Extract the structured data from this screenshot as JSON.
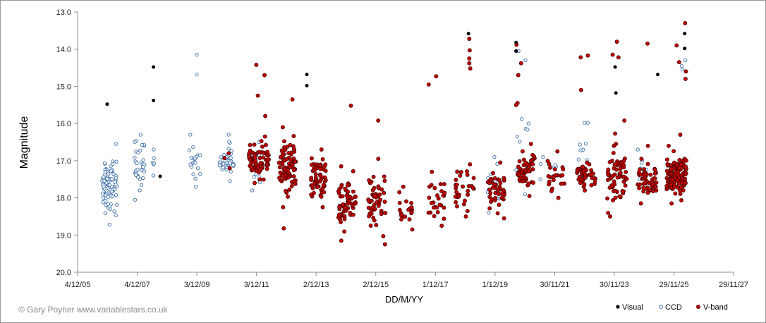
{
  "chart_data": {
    "type": "scatter",
    "title": "",
    "xlabel": "DD/M/YY",
    "ylabel": "Magnitude",
    "x_tick_labels": [
      "4/12/05",
      "4/12/07",
      "3/12/09",
      "3/12/11",
      "2/12/13",
      "2/12/15",
      "1/12/17",
      "1/12/19",
      "30/11/21",
      "30/11/23",
      "29/11/25",
      "29/11/27"
    ],
    "y_tick_labels": [
      "13.0",
      "14.0",
      "15.0",
      "16.0",
      "17.0",
      "18.0",
      "19.0",
      "20.0"
    ],
    "xlim": [
      "4/12/05",
      "29/11/27"
    ],
    "ylim": [
      20.0,
      13.0
    ],
    "y_inverted": true,
    "grid": "horizontal gridlines off",
    "legend_position": "bottom-right",
    "series": [
      {
        "name": "Visual",
        "color": "#000000",
        "marker": "filled-circle",
        "points": [
          {
            "x": "2006-12-01",
            "y": 15.48
          },
          {
            "x": "2008-06-20",
            "y": 14.48
          },
          {
            "x": "2008-06-20",
            "y": 15.38
          },
          {
            "x": "2008-09-10",
            "y": 17.42
          },
          {
            "x": "2013-08-10",
            "y": 14.68
          },
          {
            "x": "2013-08-10",
            "y": 14.98
          },
          {
            "x": "2019-01-10",
            "y": 13.58
          },
          {
            "x": "2020-08-15",
            "y": 13.82
          },
          {
            "x": "2020-08-15",
            "y": 14.05
          },
          {
            "x": "2023-12-10",
            "y": 14.48
          },
          {
            "x": "2023-12-20",
            "y": 15.18
          },
          {
            "x": "2025-05-15",
            "y": 14.68
          },
          {
            "x": "2026-04-10",
            "y": 13.58
          },
          {
            "x": "2026-04-10",
            "y": 13.98
          }
        ]
      },
      {
        "name": "CCD",
        "color": "#3d6fa8",
        "marker": "open-circle",
        "ranges": [
          {
            "from": "2006-10-01",
            "to": "2007-04-01",
            "y_min": 16.55,
            "y_max": 18.72,
            "count": 95
          },
          {
            "from": "2007-11-01",
            "to": "2008-03-01",
            "y_min": 16.3,
            "y_max": 18.05,
            "count": 35
          },
          {
            "from": "2008-06-01",
            "to": "2008-07-01",
            "y_min": 16.7,
            "y_max": 17.4,
            "count": 6
          },
          {
            "from": "2009-09-01",
            "to": "2010-01-15",
            "y_min": 16.3,
            "y_max": 17.7,
            "count": 20
          },
          {
            "from": "2010-09-01",
            "to": "2011-03-01",
            "y_min": 16.3,
            "y_max": 17.55,
            "count": 40
          },
          {
            "from": "2011-09-01",
            "to": "2012-01-15",
            "y_min": 16.5,
            "y_max": 17.8,
            "count": 15
          },
          {
            "from": "2019-09-01",
            "to": "2020-01-15",
            "y_min": 16.9,
            "y_max": 18.4,
            "count": 12
          },
          {
            "from": "2020-08-01",
            "to": "2021-01-15",
            "y_min": 14.05,
            "y_max": 17.9,
            "count": 10
          },
          {
            "from": "2021-06-01",
            "to": "2022-01-01",
            "y_min": 16.9,
            "y_max": 17.5,
            "count": 6
          },
          {
            "from": "2022-09-01",
            "to": "2023-02-01",
            "y_min": 15.98,
            "y_max": 17.4,
            "count": 8
          },
          {
            "from": "2024-09-01",
            "to": "2025-01-01",
            "y_min": 16.7,
            "y_max": 17.5,
            "count": 6
          },
          {
            "from": "2026-03-01",
            "to": "2026-05-01",
            "y_min": 14.3,
            "y_max": 14.8,
            "count": 4
          }
        ],
        "points": [
          {
            "x": "2009-12-01",
            "y": 14.15
          },
          {
            "x": "2009-12-01",
            "y": 14.68
          },
          {
            "x": "2023-01-10",
            "y": 15.98
          },
          {
            "x": "2020-08-15",
            "y": 14.05
          }
        ]
      },
      {
        "name": "V-band",
        "color": "#c00000",
        "marker": "filled-circle-dark-edge",
        "ranges": [
          {
            "from": "2010-11-01",
            "to": "2011-02-01",
            "y_min": 16.8,
            "y_max": 17.2,
            "count": 3
          },
          {
            "from": "2011-09-01",
            "to": "2012-05-01",
            "y_min": 16.35,
            "y_max": 17.6,
            "count": 70
          },
          {
            "from": "2012-09-01",
            "to": "2013-04-01",
            "y_min": 16.1,
            "y_max": 18.25,
            "count": 80
          },
          {
            "from": "2013-10-01",
            "to": "2014-04-01",
            "y_min": 16.7,
            "y_max": 18.25,
            "count": 60
          },
          {
            "from": "2014-09-01",
            "to": "2015-04-01",
            "y_min": 17.15,
            "y_max": 19.15,
            "count": 60
          },
          {
            "from": "2015-09-01",
            "to": "2016-04-01",
            "y_min": 16.95,
            "y_max": 19.25,
            "count": 50
          },
          {
            "from": "2016-09-01",
            "to": "2017-03-01",
            "y_min": 17.7,
            "y_max": 18.85,
            "count": 20
          },
          {
            "from": "2017-09-01",
            "to": "2018-04-01",
            "y_min": 17.3,
            "y_max": 18.75,
            "count": 28
          },
          {
            "from": "2018-08-01",
            "to": "2019-04-01",
            "y_min": 17.1,
            "y_max": 18.5,
            "count": 30
          },
          {
            "from": "2019-09-01",
            "to": "2020-04-01",
            "y_min": 17.05,
            "y_max": 18.55,
            "count": 45
          },
          {
            "from": "2020-09-01",
            "to": "2021-04-01",
            "y_min": 16.55,
            "y_max": 17.95,
            "count": 50
          },
          {
            "from": "2021-09-01",
            "to": "2022-04-01",
            "y_min": 16.75,
            "y_max": 18.0,
            "count": 25
          },
          {
            "from": "2022-09-01",
            "to": "2023-05-01",
            "y_min": 17.05,
            "y_max": 17.8,
            "count": 45
          },
          {
            "from": "2023-09-01",
            "to": "2024-05-01",
            "y_min": 16.6,
            "y_max": 18.5,
            "count": 60
          },
          {
            "from": "2024-09-01",
            "to": "2025-05-01",
            "y_min": 16.95,
            "y_max": 18.15,
            "count": 55
          },
          {
            "from": "2025-09-01",
            "to": "2026-05-01",
            "y_min": 16.6,
            "y_max": 18.15,
            "count": 120
          }
        ],
        "points": [
          {
            "x": "2011-12-01",
            "y": 14.42
          },
          {
            "x": "2011-12-20",
            "y": 15.25
          },
          {
            "x": "2012-03-10",
            "y": 14.7
          },
          {
            "x": "2012-03-20",
            "y": 15.8
          },
          {
            "x": "2013-02-15",
            "y": 15.35
          },
          {
            "x": "2012-11-01",
            "y": 18.82
          },
          {
            "x": "2015-02-01",
            "y": 15.52
          },
          {
            "x": "2016-01-01",
            "y": 15.92
          },
          {
            "x": "2017-09-10",
            "y": 14.95
          },
          {
            "x": "2017-12-10",
            "y": 14.73
          },
          {
            "x": "2019-01-20",
            "y": 13.72
          },
          {
            "x": "2019-01-20",
            "y": 14.25
          },
          {
            "x": "2019-01-20",
            "y": 14.38
          },
          {
            "x": "2019-02-01",
            "y": 14.52
          },
          {
            "x": "2019-01-25",
            "y": 14.03
          },
          {
            "x": "2020-08-20",
            "y": 13.88
          },
          {
            "x": "2020-09-10",
            "y": 14.7
          },
          {
            "x": "2020-09-01",
            "y": 15.45
          },
          {
            "x": "2020-10-15",
            "y": 14.38
          },
          {
            "x": "2020-08-15",
            "y": 15.5
          },
          {
            "x": "2022-10-15",
            "y": 14.22
          },
          {
            "x": "2022-10-20",
            "y": 15.1
          },
          {
            "x": "2023-01-10",
            "y": 14.17
          },
          {
            "x": "2023-11-10",
            "y": 14.15
          },
          {
            "x": "2024-01-01",
            "y": 13.8
          },
          {
            "x": "2024-01-20",
            "y": 14.22
          },
          {
            "x": "2023-12-10",
            "y": 16.27
          },
          {
            "x": "2023-12-20",
            "y": 16.55
          },
          {
            "x": "2024-04-01",
            "y": 15.92
          },
          {
            "x": "2025-01-10",
            "y": 13.85
          },
          {
            "x": "2025-01-15",
            "y": 16.6
          },
          {
            "x": "2026-01-01",
            "y": 13.9
          },
          {
            "x": "2026-02-01",
            "y": 14.35
          },
          {
            "x": "2026-02-15",
            "y": 16.3
          },
          {
            "x": "2026-04-15",
            "y": 13.3
          },
          {
            "x": "2026-04-20",
            "y": 14.8
          },
          {
            "x": "2026-04-25",
            "y": 14.6
          }
        ]
      }
    ]
  },
  "credit": "© Gary Poyner www.variablestars.co.uk",
  "legend": {
    "visual_label": "Visual",
    "ccd_label": "CCD",
    "vband_label": "V-band"
  },
  "colors": {
    "visual": "#000000",
    "ccd_edge": "#3d6fa8",
    "vband_fill": "#c00000",
    "vband_edge": "#3a0000",
    "axis": "#8c8c8c"
  }
}
